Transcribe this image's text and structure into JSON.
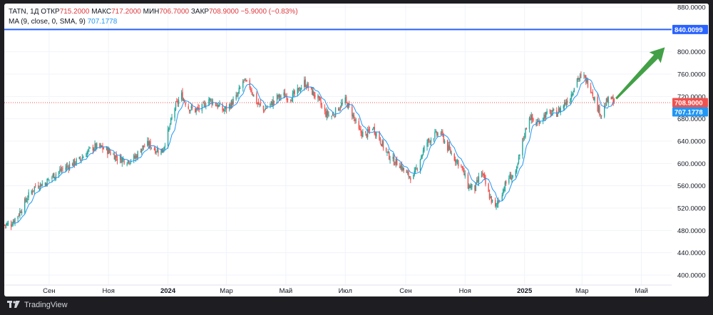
{
  "legend": {
    "symbol": "TATN, 1Д",
    "open_label": "ОТКР",
    "open": "715.2000",
    "high_label": "МАКС",
    "high": "717.2000",
    "low_label": "МИН",
    "low": "706.7000",
    "close_label": "ЗАКР",
    "close": "708.9000",
    "change": "−5.9000 (−0.83%)",
    "ma_label": "MA (9, close, 0, SMA, 9)",
    "ma_value": "707.1778"
  },
  "colors": {
    "up": "#26a69a",
    "down": "#ef5350",
    "ma": "#2196f3",
    "hline": "#2962ff",
    "arrow": "#43a047",
    "grid": "#f0f3fa"
  },
  "footer": {
    "brand": "TradingView",
    "logo_icon": "tradingview-logo-icon"
  },
  "chart_data": {
    "type": "candlestick",
    "title": "TATN, 1Д",
    "ylim": [
      400,
      880
    ],
    "y_ticks": [
      "400.0000",
      "440.0000",
      "480.0000",
      "520.0000",
      "560.0000",
      "600.0000",
      "640.0000",
      "680.0000",
      "720.0000",
      "760.0000",
      "800.0000",
      "840.0000",
      "880.0000"
    ],
    "x_ticks": [
      "Сен",
      "Ноя",
      "2024",
      "Мар",
      "Май",
      "Июл",
      "Сен",
      "Ноя",
      "2025",
      "Мар",
      "Май"
    ],
    "x_tick_dates": [
      "2023-09-01",
      "2023-11-01",
      "2024-01-01",
      "2024-03-01",
      "2024-05-01",
      "2024-07-01",
      "2024-09-01",
      "2024-11-01",
      "2025-01-01",
      "2025-03-01",
      "2025-05-01"
    ],
    "x_range": [
      "2023-07-17",
      "2025-06-01"
    ],
    "price_path": [
      [
        "2023-07-17",
        490
      ],
      [
        "2023-07-24",
        492
      ],
      [
        "2023-08-01",
        510
      ],
      [
        "2023-08-10",
        540
      ],
      [
        "2023-08-18",
        560
      ],
      [
        "2023-08-28",
        565
      ],
      [
        "2023-09-05",
        578
      ],
      [
        "2023-09-15",
        590
      ],
      [
        "2023-09-25",
        600
      ],
      [
        "2023-10-02",
        606
      ],
      [
        "2023-10-10",
        620
      ],
      [
        "2023-10-17",
        630
      ],
      [
        "2023-10-25",
        628
      ],
      [
        "2023-11-01",
        622
      ],
      [
        "2023-11-10",
        610
      ],
      [
        "2023-11-20",
        605
      ],
      [
        "2023-11-28",
        610
      ],
      [
        "2023-12-05",
        628
      ],
      [
        "2023-12-12",
        635
      ],
      [
        "2023-12-19",
        625
      ],
      [
        "2023-12-26",
        622
      ],
      [
        "2024-01-01",
        655
      ],
      [
        "2024-01-08",
        700
      ],
      [
        "2024-01-15",
        722
      ],
      [
        "2024-01-22",
        700
      ],
      [
        "2024-01-29",
        695
      ],
      [
        "2024-02-05",
        700
      ],
      [
        "2024-02-12",
        715
      ],
      [
        "2024-02-20",
        705
      ],
      [
        "2024-02-27",
        695
      ],
      [
        "2024-03-05",
        705
      ],
      [
        "2024-03-12",
        720
      ],
      [
        "2024-03-18",
        748
      ],
      [
        "2024-03-25",
        738
      ],
      [
        "2024-04-01",
        710
      ],
      [
        "2024-04-08",
        696
      ],
      [
        "2024-04-15",
        705
      ],
      [
        "2024-04-22",
        718
      ],
      [
        "2024-04-29",
        722
      ],
      [
        "2024-05-06",
        718
      ],
      [
        "2024-05-13",
        728
      ],
      [
        "2024-05-20",
        745
      ],
      [
        "2024-05-27",
        730
      ],
      [
        "2024-06-03",
        715
      ],
      [
        "2024-06-10",
        690
      ],
      [
        "2024-06-17",
        685
      ],
      [
        "2024-06-24",
        700
      ],
      [
        "2024-07-01",
        712
      ],
      [
        "2024-07-08",
        690
      ],
      [
        "2024-07-15",
        658
      ],
      [
        "2024-07-22",
        650
      ],
      [
        "2024-07-29",
        665
      ],
      [
        "2024-08-05",
        645
      ],
      [
        "2024-08-12",
        620
      ],
      [
        "2024-08-19",
        605
      ],
      [
        "2024-08-26",
        598
      ],
      [
        "2024-09-02",
        580
      ],
      [
        "2024-09-09",
        575
      ],
      [
        "2024-09-16",
        610
      ],
      [
        "2024-09-23",
        638
      ],
      [
        "2024-09-30",
        650
      ],
      [
        "2024-10-07",
        655
      ],
      [
        "2024-10-14",
        628
      ],
      [
        "2024-10-21",
        610
      ],
      [
        "2024-10-28",
        595
      ],
      [
        "2024-11-04",
        560
      ],
      [
        "2024-11-11",
        555
      ],
      [
        "2024-11-18",
        585
      ],
      [
        "2024-11-25",
        545
      ],
      [
        "2024-12-02",
        520
      ],
      [
        "2024-12-09",
        550
      ],
      [
        "2024-12-16",
        575
      ],
      [
        "2024-12-23",
        580
      ],
      [
        "2024-12-30",
        640
      ],
      [
        "2025-01-06",
        685
      ],
      [
        "2025-01-13",
        670
      ],
      [
        "2025-01-20",
        685
      ],
      [
        "2025-01-27",
        690
      ],
      [
        "2025-02-03",
        690
      ],
      [
        "2025-02-10",
        705
      ],
      [
        "2025-02-17",
        720
      ],
      [
        "2025-02-24",
        752
      ],
      [
        "2025-03-03",
        755
      ],
      [
        "2025-03-10",
        735
      ],
      [
        "2025-03-17",
        700
      ],
      [
        "2025-03-21",
        688
      ],
      [
        "2025-03-26",
        710
      ],
      [
        "2025-03-31",
        716
      ],
      [
        "2025-04-03",
        709
      ]
    ],
    "last_close": 708.9,
    "ma_last": 707.1778,
    "horizontal_line": 840.0099,
    "price_labels": [
      {
        "value": "840.0099",
        "color": "#2962ff"
      },
      {
        "value": "708.9000",
        "color": "#ef5350"
      },
      {
        "value": "707.1778",
        "color": "#2196f3"
      }
    ],
    "annotation": {
      "type": "arrow",
      "from": [
        "2025-04-05",
        716
      ],
      "to": [
        "2025-05-25",
        808
      ],
      "color": "#43a047"
    },
    "grid": true
  }
}
